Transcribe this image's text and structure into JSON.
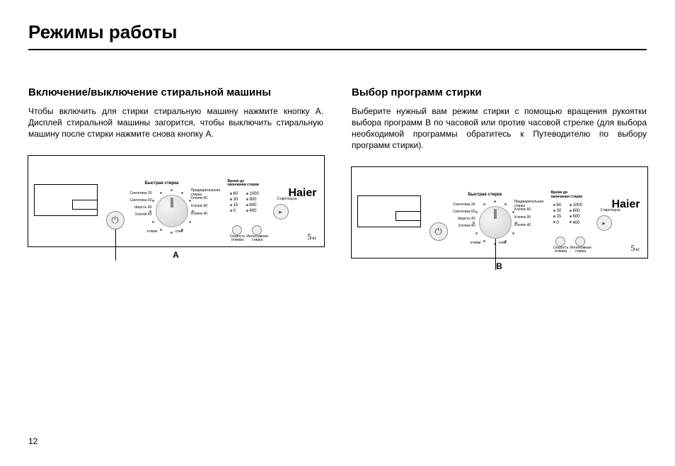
{
  "page": {
    "title": "Режимы работы",
    "page_number": "12"
  },
  "left": {
    "heading": "Включение/выключение стиральной машины",
    "body": "Чтобы включить для стирки стиральную машину нажмите кнопку A. Дисплей стиральной машины загорится, чтобы выключить стиральную машину после стирки нажмите снова кнопку A.",
    "callout": "A"
  },
  "right": {
    "heading": "Выбор программ стирки",
    "body": "Выберите нужный вам режим стирки с помощью вращения рукоятки выбора программ B по часовой или против часовой стрелке (для выбора необходимой программы обратитесь к Путеводителю по выбору программ стирки).",
    "callout": "B"
  },
  "panel": {
    "brand": "Haier",
    "capacity_value": "5",
    "capacity_unit": "кг",
    "dial_top": "Быстрая стирка",
    "dial_left": [
      "Синтетика 30",
      "Синтетика 60",
      "Шерсть 40",
      "Хлопок 40"
    ],
    "dial_right": [
      "Предварительная\nстирка",
      "Хлопок 60",
      "Хлопок 90",
      "Хлопок 40"
    ],
    "dial_bottom_left": "отжим",
    "dial_bottom_right": "слив",
    "delay_title": "Время до\nокончания стирки",
    "delay_col1": [
      "60",
      "30",
      "15",
      "0"
    ],
    "delay_col2": [
      "1000",
      "800",
      "600",
      "400"
    ],
    "startpause": "Старт/пауза",
    "btn_speed": "Скорость\nотжима",
    "btn_intense": "Интенсивная\nстирка"
  }
}
